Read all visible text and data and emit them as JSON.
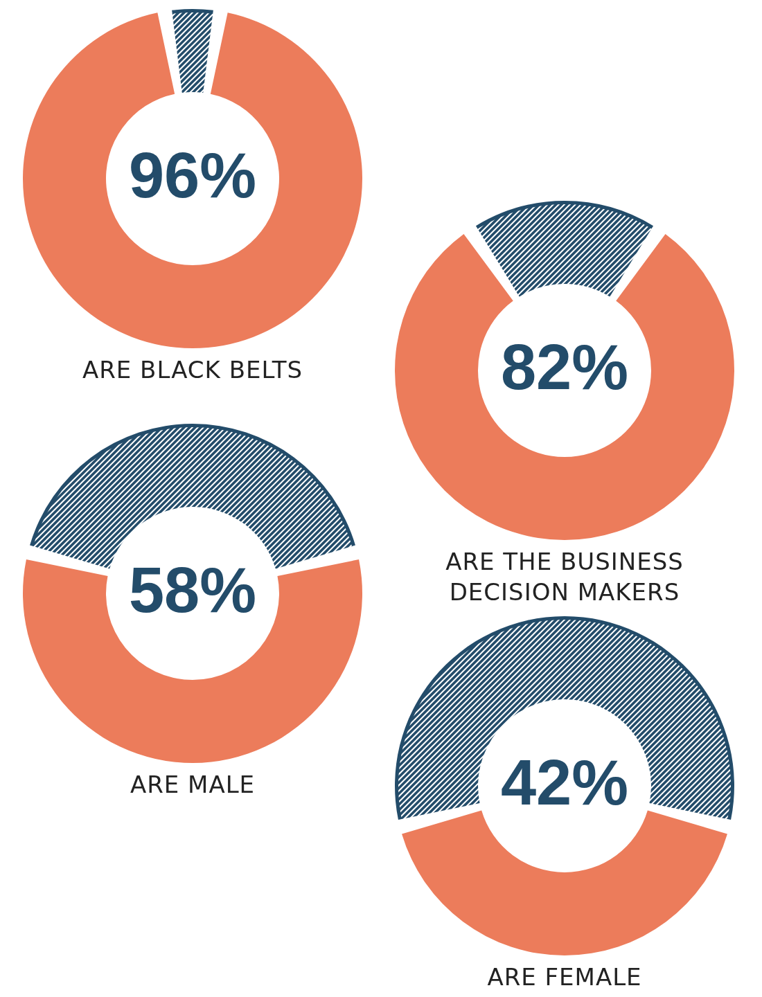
{
  "chart_data": [
    {
      "type": "donut",
      "categories": [
        "ARE BLACK BELTS",
        null
      ],
      "values": [
        96,
        4
      ],
      "colors": [
        "#ec7c5b",
        "#234c6a"
      ],
      "annotations": [
        "96%"
      ]
    },
    {
      "type": "donut",
      "categories": [
        "ARE THE BUSINESS DECISION MAKERS",
        null
      ],
      "values": [
        82,
        18
      ],
      "colors": [
        "#ec7c5b",
        "#234c6a"
      ],
      "annotations": [
        "82%"
      ]
    },
    {
      "type": "donut",
      "categories": [
        "ARE MALE",
        null
      ],
      "values": [
        58,
        42
      ],
      "colors": [
        "#ec7c5b",
        "#234c6a"
      ],
      "annotations": [
        "58%"
      ]
    },
    {
      "type": "donut",
      "categories": [
        "ARE FEMALE",
        null
      ],
      "values": [
        42,
        58
      ],
      "colors": [
        "#ec7c5b",
        "#234c6a"
      ],
      "annotations": [
        "42%"
      ]
    }
  ]
}
